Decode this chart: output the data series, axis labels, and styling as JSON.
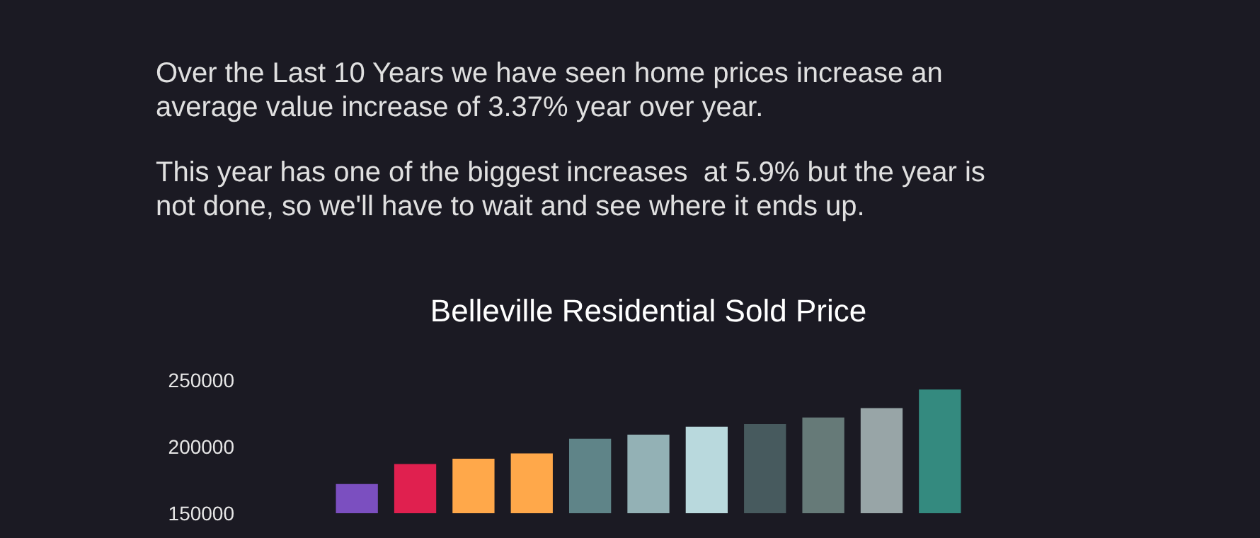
{
  "chart_data": {
    "type": "bar",
    "title": "Belleville Residential Sold Price",
    "annotations": [
      "Over the Last 10 Years we have seen home prices increase an average value increase of 3.37% year over year.",
      "This year has one of the biggest increases  at 5.9% but the year is not done, so we'll have to wait and see where it ends up."
    ],
    "categories": [
      null,
      null,
      null,
      null,
      null,
      null,
      null,
      null,
      null,
      null,
      null
    ],
    "values": [
      172000,
      187000,
      191000,
      195000,
      206000,
      209000,
      215000,
      217000,
      222000,
      229000,
      243000
    ],
    "colors": [
      "#7b4fc0",
      "#e0204f",
      "#ffa84a",
      "#ffa84a",
      "#5f8488",
      "#93b1b5",
      "#b9d9dd",
      "#475a5e",
      "#667a78",
      "#98a5a7",
      "#348a7f"
    ],
    "ylim": [
      150000,
      250000
    ],
    "yticks": [
      150000,
      200000,
      250000
    ],
    "tick_labels": "y"
  }
}
